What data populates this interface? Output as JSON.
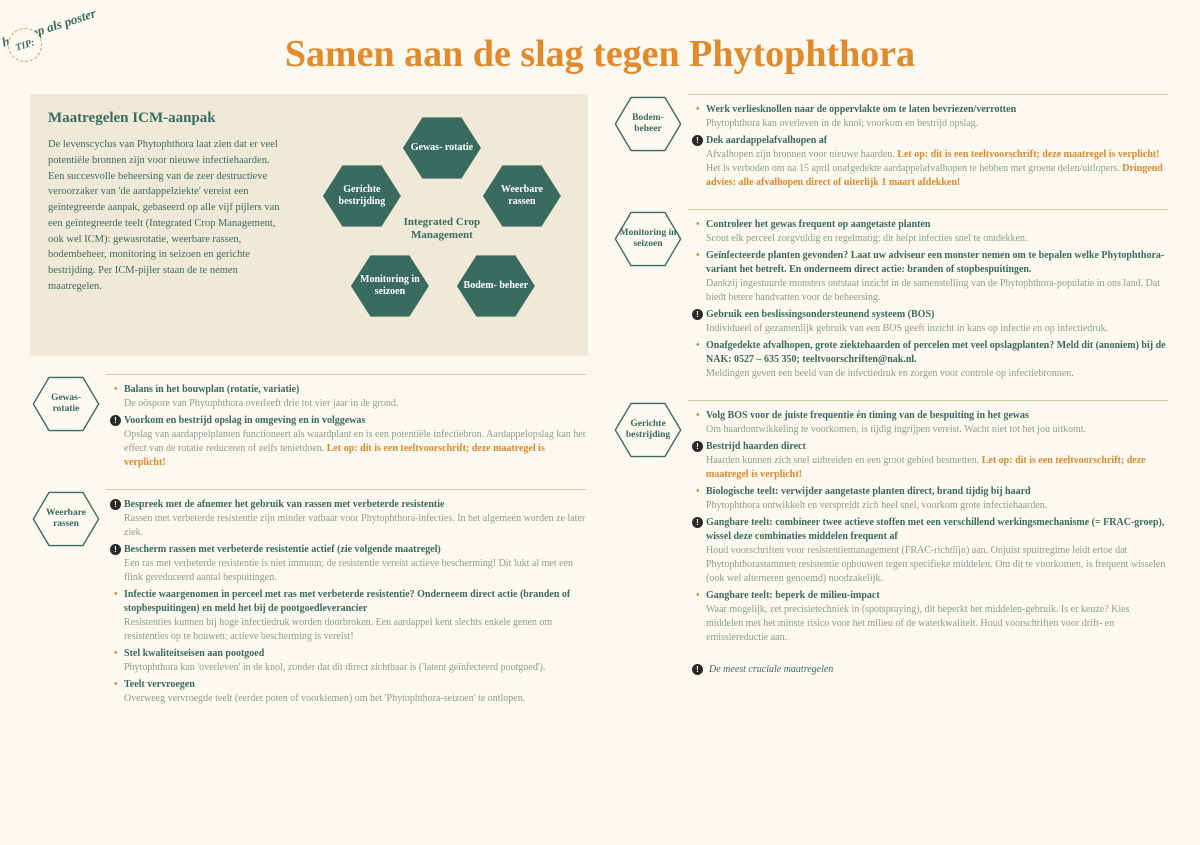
{
  "tip": {
    "badge": "TIP:",
    "text": "hang op als poster"
  },
  "title": "Samen aan de slag  tegen Phytophthora",
  "intro": {
    "heading": "Maatregelen ICM-aanpak",
    "body": "De levenscyclus van Phytophthora laat zien dat er veel potentiële bronnen zijn voor nieuwe infectiehaarden. Een succesvolle beheersing van de zeer destructieve veroorzaker van 'de aardappelziekte' vereist een geïntegreerde aanpak, gebaseerd op alle vijf pijlers van een geïntegreerde teelt (Integrated Crop Management, ook wel ICM): gewasrotatie, weerbare rassen, bodembeheer, monitoring in seizoen en gerichte bestrijding. Per ICM-pijler staan de te nemen maatregelen."
  },
  "diagram": {
    "center": "Integrated Crop Management",
    "nodes": [
      "Gewas-\nrotatie",
      "Weerbare rassen",
      "Bodem-\nbeheer",
      "Monitoring in seizoen",
      "Gerichte bestrijding"
    ]
  },
  "sections": [
    {
      "label": "Gewas-\nrotatie",
      "items": [
        {
          "alert": false,
          "title": "Balans in het bouwplan (rotatie, variatie)",
          "body": "De oöspore van Phytophthora overleeft drie tot vier jaar in de grond."
        },
        {
          "alert": true,
          "title": "Voorkom en bestrijd opslag in omgeving en in volggewas",
          "body": "Opslag van aardappelplanten functioneert als waardplant en is een potentiële infectiebron. Aardappelopslag kan het effect van de rotatie reduceren of zelfs tenietdoen.",
          "warn": "Let op: dit is een teeltvoorschrift; deze maatregel is verplicht!"
        }
      ]
    },
    {
      "label": "Weerbare rassen",
      "items": [
        {
          "alert": true,
          "title": "Bespreek met de afnemer het gebruik van rassen met verbeterde resistentie",
          "body": "Rassen met verbeterde resistentie zijn minder vatbaar voor Phytophthora-infecties. In het algemeen worden ze later ziek."
        },
        {
          "alert": true,
          "title": "Bescherm rassen met verbeterde resistentie actief (zie volgende maatregel)",
          "body": "Een ras met verbeterde resistentie is niet immuun; de resistentie vereist actieve bescherming! Dit lukt al met een flink gereduceerd aantal bespuitingen."
        },
        {
          "alert": false,
          "title": "Infectie waargenomen in perceel met ras met verbeterde resistentie? Onderneem direct actie (branden of stopbespuitingen) en meld het bij de pootgoedleverancier",
          "body": "Resistenties kunnen bij hoge infectiedruk worden doorbroken. Een aardappel kent slechts enkele genen om resistenties op te bouwen; actieve bescherming is vereist!"
        },
        {
          "alert": false,
          "title": "Stel kwaliteitseisen aan pootgoed",
          "body": "Phytophthora kan 'overleven' in de knol, zonder dat dit direct zichtbaar is ('latent geïnfecteerd pootgoed')."
        },
        {
          "alert": false,
          "title": "Teelt vervroegen",
          "body": "Overweeg vervroegde teelt (eerder poten of voorkiemen) om het 'Phytophthora-seizoen' te ontlopen."
        }
      ]
    },
    {
      "label": "Bodem-\nbeheer",
      "items": [
        {
          "alert": false,
          "title": "Werk verliesknollen naar de oppervlakte om te laten bevriezen/verrotten",
          "body": "Phytophthora kan overleven in de knol; voorkom en bestrijd opslag."
        },
        {
          "alert": true,
          "title": "Dek aardappelafvalhopen af",
          "body": "Afvalhopen zijn bronnen voor nieuwe haarden.",
          "warn": "Let op: dit is een teeltvoorschrift; deze maatregel is verplicht!",
          "body2": " Het is verboden om na 15 april onafgedekte aardappelafvalhopen te hebben met groene delen/uitlopers. ",
          "warn2": "Dringend advies: alle afvalhopen direct of uiterlijk 1 maart afdekken!"
        }
      ]
    },
    {
      "label": "Monitoring in seizoen",
      "items": [
        {
          "alert": false,
          "title": "Controleer het gewas frequent op aangetaste planten",
          "body": "Scout elk perceel zorgvuldig en regelmatig; dit helpt infecties snel te ontdekken."
        },
        {
          "alert": false,
          "title": "Geïnfecteerde planten gevonden? Laat uw adviseur een monster nemen om te bepalen welke Phytophthora-variant het betreft. En onderneem direct actie: branden of stopbespuitingen.",
          "body": "Dankzij ingestuurde monsters ontstaat inzicht in de samenstelling van de Phytophthora-populatie in ons land. Dat biedt betere handvatten voor de beheersing."
        },
        {
          "alert": true,
          "title": "Gebruik een beslissingsondersteunend systeem (BOS)",
          "body": "Individueel of gezamenlijk gebruik van een BOS geeft inzicht in kans op infectie en op infectiedruk."
        },
        {
          "alert": false,
          "title": "Onafgedekte afvalhopen, grote ziektehaarden of percelen met veel opslagplanten? Meld dit (anoniem) bij de NAK: 0527 – 635 350; teeltvoorschriften@nak.nl.",
          "body": "Meldingen geven een beeld van de infectiedruk en zorgen voor controle op infectiebronnen."
        }
      ]
    },
    {
      "label": "Gerichte bestrijding",
      "items": [
        {
          "alert": false,
          "title": "Volg BOS voor de juiste frequentie én timing van de bespuiting in het gewas",
          "body": "Om haardontwikkeling te voorkomen, is tijdig ingrijpen vereist. Wacht niet tot het jou uitkomt."
        },
        {
          "alert": true,
          "title": "Bestrijd haarden direct",
          "body": "Haarden kunnen zich snel uitbreiden en een groot gebied besmetten.",
          "warn": "Let op: dit is een teeltvoorschrift; deze maatregel is verplicht!"
        },
        {
          "alert": false,
          "title": "Biologische teelt: verwijder aangetaste planten direct, brand tijdig bij haard",
          "body": "Phytophthora ontwikkelt en verspreidt zich heel snel, voorkom grote infectiehaarden."
        },
        {
          "alert": true,
          "title": "Gangbare teelt: combineer twee actieve stoffen met een verschillend werkingsmechanisme (= FRAC-groep), wissel deze combinaties middelen frequent af",
          "body": "Houd voorschriften voor resistentiemanagement (FRAC-richtlijn) aan. Onjuist spuitregime leidt ertoe dat Phytophthorastammen resistentie opbouwen tegen specifieke middelen. Om dit te voorkomen, is frequent wisselen (ook wel alterneren genoemd) noodzakelijk."
        },
        {
          "alert": false,
          "title": "Gangbare teelt: beperk de milieu-impact",
          "body": "Waar mogelijk, zet precisietechniek in (spotspraying), dit beperkt het middelen-gebruik. Is er keuze? Kies middelen met het minste risico voor het milieu of de waterkwaliteit. Houd voorschriften voor drift- en emissiereductie aan."
        }
      ]
    }
  ],
  "footnote": "De meest cruciale maatregelen"
}
